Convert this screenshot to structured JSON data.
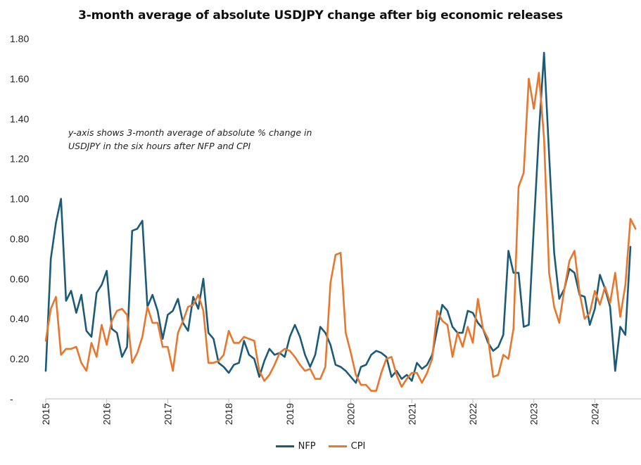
{
  "chart_data": {
    "type": "line",
    "title": "3-month average of absolute USDJPY change after big economic releases",
    "annotation": "y-axis shows 3-month average of absolute % change in USDJPY in the six hours after NFP and CPI",
    "xlabel": "",
    "ylabel": "",
    "ylim": [
      0,
      1.8
    ],
    "yticks": [
      "-",
      "0.20",
      "0.40",
      "0.60",
      "0.80",
      "1.00",
      "1.20",
      "1.40",
      "1.60",
      "1.80"
    ],
    "xticks": [
      "2015",
      "2016",
      "2017",
      "2018",
      "2019",
      "2020",
      "2021",
      "2022",
      "2023",
      "2024"
    ],
    "x_start": "2015-01",
    "x_frequency": "monthly",
    "grid": false,
    "legend": "bottom-center",
    "series": [
      {
        "name": "NFP",
        "color": "#1c5b78",
        "values": [
          0.14,
          0.7,
          0.88,
          1.0,
          0.49,
          0.54,
          0.43,
          0.52,
          0.34,
          0.31,
          0.53,
          0.57,
          0.64,
          0.35,
          0.33,
          0.21,
          0.26,
          0.84,
          0.85,
          0.89,
          0.46,
          0.52,
          0.44,
          0.3,
          0.42,
          0.44,
          0.5,
          0.38,
          0.34,
          0.51,
          0.45,
          0.6,
          0.33,
          0.3,
          0.18,
          0.16,
          0.13,
          0.17,
          0.18,
          0.29,
          0.22,
          0.2,
          0.11,
          0.19,
          0.25,
          0.22,
          0.23,
          0.21,
          0.31,
          0.37,
          0.31,
          0.22,
          0.16,
          0.22,
          0.36,
          0.33,
          0.27,
          0.17,
          0.16,
          0.14,
          0.11,
          0.08,
          0.16,
          0.17,
          0.22,
          0.24,
          0.23,
          0.21,
          0.11,
          0.14,
          0.1,
          0.12,
          0.09,
          0.18,
          0.15,
          0.17,
          0.22,
          0.35,
          0.47,
          0.44,
          0.36,
          0.33,
          0.33,
          0.44,
          0.43,
          0.38,
          0.35,
          0.28,
          0.24,
          0.26,
          0.32,
          0.74,
          0.63,
          0.63,
          0.36,
          0.37,
          0.86,
          1.33,
          1.73,
          1.22,
          0.73,
          0.5,
          0.55,
          0.65,
          0.63,
          0.52,
          0.51,
          0.37,
          0.45,
          0.62,
          0.55,
          0.46,
          0.14,
          0.36,
          0.32,
          0.76
        ]
      },
      {
        "name": "CPI",
        "color": "#e8772e",
        "values": [
          0.29,
          0.45,
          0.51,
          0.22,
          0.25,
          0.25,
          0.26,
          0.18,
          0.14,
          0.28,
          0.21,
          0.37,
          0.27,
          0.39,
          0.44,
          0.45,
          0.42,
          0.18,
          0.23,
          0.31,
          0.46,
          0.38,
          0.38,
          0.26,
          0.26,
          0.14,
          0.33,
          0.39,
          0.46,
          0.47,
          0.52,
          0.44,
          0.18,
          0.18,
          0.19,
          0.22,
          0.34,
          0.28,
          0.28,
          0.31,
          0.3,
          0.29,
          0.14,
          0.09,
          0.12,
          0.17,
          0.23,
          0.25,
          0.24,
          0.21,
          0.17,
          0.14,
          0.15,
          0.1,
          0.1,
          0.16,
          0.58,
          0.72,
          0.73,
          0.33,
          0.23,
          0.12,
          0.07,
          0.07,
          0.04,
          0.04,
          0.13,
          0.2,
          0.21,
          0.12,
          0.06,
          0.1,
          0.13,
          0.13,
          0.08,
          0.13,
          0.2,
          0.44,
          0.39,
          0.37,
          0.21,
          0.33,
          0.26,
          0.36,
          0.28,
          0.5,
          0.35,
          0.3,
          0.11,
          0.12,
          0.22,
          0.2,
          0.35,
          1.06,
          1.13,
          1.6,
          1.45,
          1.63,
          1.3,
          0.63,
          0.46,
          0.38,
          0.55,
          0.69,
          0.74,
          0.53,
          0.4,
          0.43,
          0.54,
          0.47,
          0.56,
          0.48,
          0.63,
          0.41,
          0.57,
          0.9,
          0.85
        ]
      }
    ]
  }
}
